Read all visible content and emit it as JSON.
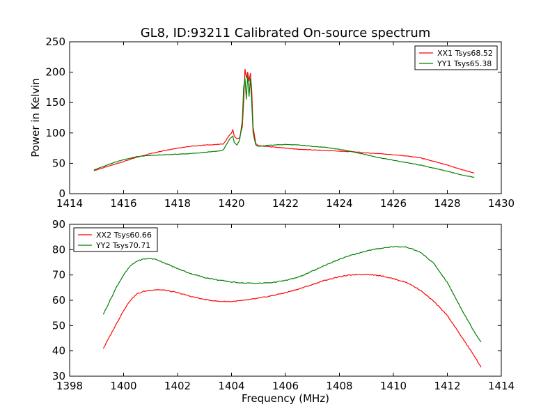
{
  "figure": {
    "title": "GL8, ID:93211 Calibrated On-source spectrum",
    "xlabel": "Frequency (MHz)"
  },
  "chart_data": [
    {
      "type": "line",
      "title": "GL8, ID:93211 Calibrated On-source spectrum",
      "xlabel": "",
      "ylabel": "Power in Kelvin",
      "xlim": [
        1414,
        1430
      ],
      "ylim": [
        0,
        250
      ],
      "xticks": [
        1414,
        1416,
        1418,
        1420,
        1422,
        1424,
        1426,
        1428,
        1430
      ],
      "yticks": [
        0,
        50,
        100,
        150,
        200,
        250
      ],
      "grid": false,
      "legend_position": "top-right",
      "series": [
        {
          "name": "XX1 Tsys68.52",
          "color": "#ff0000",
          "x": [
            1414.9,
            1415.5,
            1416.0,
            1416.5,
            1417.0,
            1417.5,
            1418.0,
            1418.5,
            1419.0,
            1419.5,
            1419.7,
            1419.8,
            1419.9,
            1420.0,
            1420.05,
            1420.1,
            1420.2,
            1420.3,
            1420.4,
            1420.45,
            1420.5,
            1420.55,
            1420.6,
            1420.65,
            1420.7,
            1420.75,
            1420.8,
            1420.9,
            1421.0,
            1421.5,
            1422.0,
            1422.5,
            1423.0,
            1423.5,
            1424.0,
            1424.5,
            1425.0,
            1425.5,
            1426.0,
            1426.5,
            1427.0,
            1427.5,
            1428.0,
            1428.5,
            1429.0
          ],
          "y": [
            38,
            46,
            53,
            60,
            66,
            71,
            75,
            78,
            80,
            81,
            82,
            88,
            95,
            100,
            105,
            95,
            90,
            92,
            110,
            150,
            205,
            190,
            200,
            185,
            198,
            170,
            110,
            82,
            79,
            77,
            75,
            73,
            72,
            71,
            70,
            69,
            67,
            66,
            64,
            62,
            59,
            53,
            47,
            40,
            34
          ]
        },
        {
          "name": "YY1 Tsys65.38",
          "color": "#008000",
          "x": [
            1414.9,
            1415.5,
            1416.0,
            1416.5,
            1417.0,
            1417.5,
            1418.0,
            1418.5,
            1419.0,
            1419.5,
            1419.7,
            1419.8,
            1419.9,
            1420.0,
            1420.05,
            1420.1,
            1420.2,
            1420.3,
            1420.4,
            1420.45,
            1420.5,
            1420.55,
            1420.6,
            1420.65,
            1420.7,
            1420.75,
            1420.8,
            1420.9,
            1421.0,
            1421.5,
            1422.0,
            1422.5,
            1423.0,
            1423.5,
            1424.0,
            1424.5,
            1425.0,
            1425.5,
            1426.0,
            1426.5,
            1427.0,
            1427.5,
            1428.0,
            1428.5,
            1429.0
          ],
          "y": [
            39,
            49,
            56,
            61,
            63,
            64,
            65,
            66,
            68,
            70,
            72,
            80,
            88,
            93,
            95,
            85,
            80,
            88,
            120,
            175,
            190,
            155,
            195,
            160,
            190,
            150,
            100,
            80,
            78,
            80,
            81,
            80,
            78,
            76,
            73,
            69,
            64,
            59,
            55,
            51,
            47,
            42,
            37,
            31,
            27
          ]
        }
      ]
    },
    {
      "type": "line",
      "title": "",
      "xlabel": "Frequency (MHz)",
      "ylabel": "",
      "xlim": [
        1398,
        1414
      ],
      "ylim": [
        30,
        90
      ],
      "xticks": [
        1398,
        1400,
        1402,
        1404,
        1406,
        1408,
        1410,
        1412,
        1414
      ],
      "yticks": [
        30,
        40,
        50,
        60,
        70,
        80,
        90
      ],
      "grid": false,
      "legend_position": "top-left",
      "series": [
        {
          "name": "XX2 Tsys60.66",
          "color": "#ff0000",
          "x": [
            1399.25,
            1399.5,
            1399.75,
            1400.0,
            1400.25,
            1400.5,
            1400.75,
            1401.0,
            1401.25,
            1401.5,
            1402.0,
            1402.5,
            1403.0,
            1403.5,
            1404.0,
            1404.5,
            1405.0,
            1405.5,
            1406.0,
            1406.5,
            1407.0,
            1407.5,
            1408.0,
            1408.5,
            1409.0,
            1409.5,
            1410.0,
            1410.5,
            1411.0,
            1411.5,
            1412.0,
            1412.5,
            1413.0,
            1413.25
          ],
          "y": [
            41,
            46,
            51,
            56,
            60,
            62.5,
            63.5,
            64,
            64.2,
            64,
            63,
            61.5,
            60.3,
            59.6,
            59.5,
            60,
            60.8,
            61.8,
            63,
            64.5,
            66.2,
            68,
            69.3,
            70.1,
            70.2,
            69.8,
            68.5,
            67,
            64,
            59.5,
            54,
            46,
            38,
            33.5
          ]
        },
        {
          "name": "YY2 Tsys70.71",
          "color": "#008000",
          "x": [
            1399.25,
            1399.5,
            1399.75,
            1400.0,
            1400.25,
            1400.5,
            1400.75,
            1401.0,
            1401.25,
            1401.5,
            1402.0,
            1402.5,
            1403.0,
            1403.5,
            1404.0,
            1404.5,
            1405.0,
            1405.5,
            1406.0,
            1406.5,
            1407.0,
            1407.5,
            1408.0,
            1408.5,
            1409.0,
            1409.5,
            1410.0,
            1410.5,
            1411.0,
            1411.5,
            1412.0,
            1412.5,
            1413.0,
            1413.25
          ],
          "y": [
            54.5,
            60,
            65.5,
            70,
            73.5,
            75.5,
            76.3,
            76.5,
            76,
            74.8,
            72.5,
            70.5,
            69,
            68,
            67.2,
            66.8,
            66.7,
            67,
            67.8,
            69.2,
            71.5,
            74,
            76.2,
            78,
            79.5,
            80.5,
            81.2,
            81,
            79,
            74.5,
            67,
            57,
            47.5,
            43.5
          ]
        }
      ]
    }
  ]
}
